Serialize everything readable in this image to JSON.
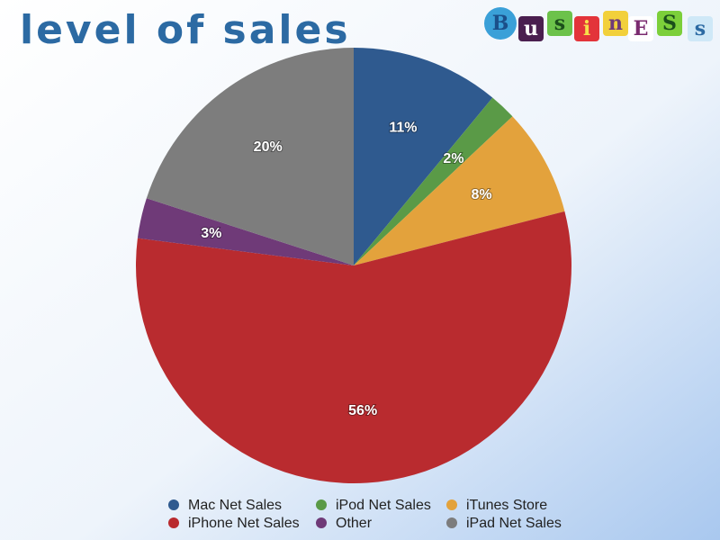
{
  "chart_data": {
    "type": "pie",
    "title": "level of sales",
    "categories": [
      "Mac Net Sales",
      "iPod Net Sales",
      "iTunes Store",
      "iPhone Net Sales",
      "Other",
      "iPad Net Sales"
    ],
    "values": [
      11,
      2,
      8,
      56,
      3,
      20
    ],
    "value_labels": [
      "11%",
      "2%",
      "8%",
      "56%",
      "3%",
      "20%"
    ],
    "colors": [
      "#2f5a8f",
      "#5a9a47",
      "#e3a23c",
      "#b92b2f",
      "#6f3a78",
      "#7d7d7d"
    ],
    "legend": "bottom"
  },
  "logo": {
    "letters": [
      "B",
      "u",
      "s",
      "i",
      "n",
      "E",
      "S",
      "s"
    ]
  }
}
